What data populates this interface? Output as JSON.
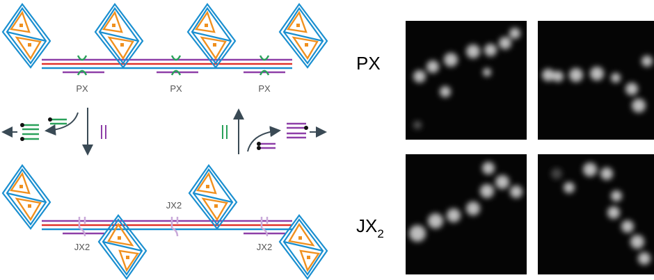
{
  "figure": {
    "top_row": {
      "junction_labels": [
        "PX",
        "PX",
        "PX"
      ]
    },
    "bottom_row": {
      "junction_labels": [
        "JX2",
        "JX2",
        "JX2"
      ]
    },
    "micrographs": {
      "rows": [
        {
          "label": "PX"
        },
        {
          "label": {
            "text": "JX",
            "subscript": "2"
          }
        }
      ]
    }
  }
}
